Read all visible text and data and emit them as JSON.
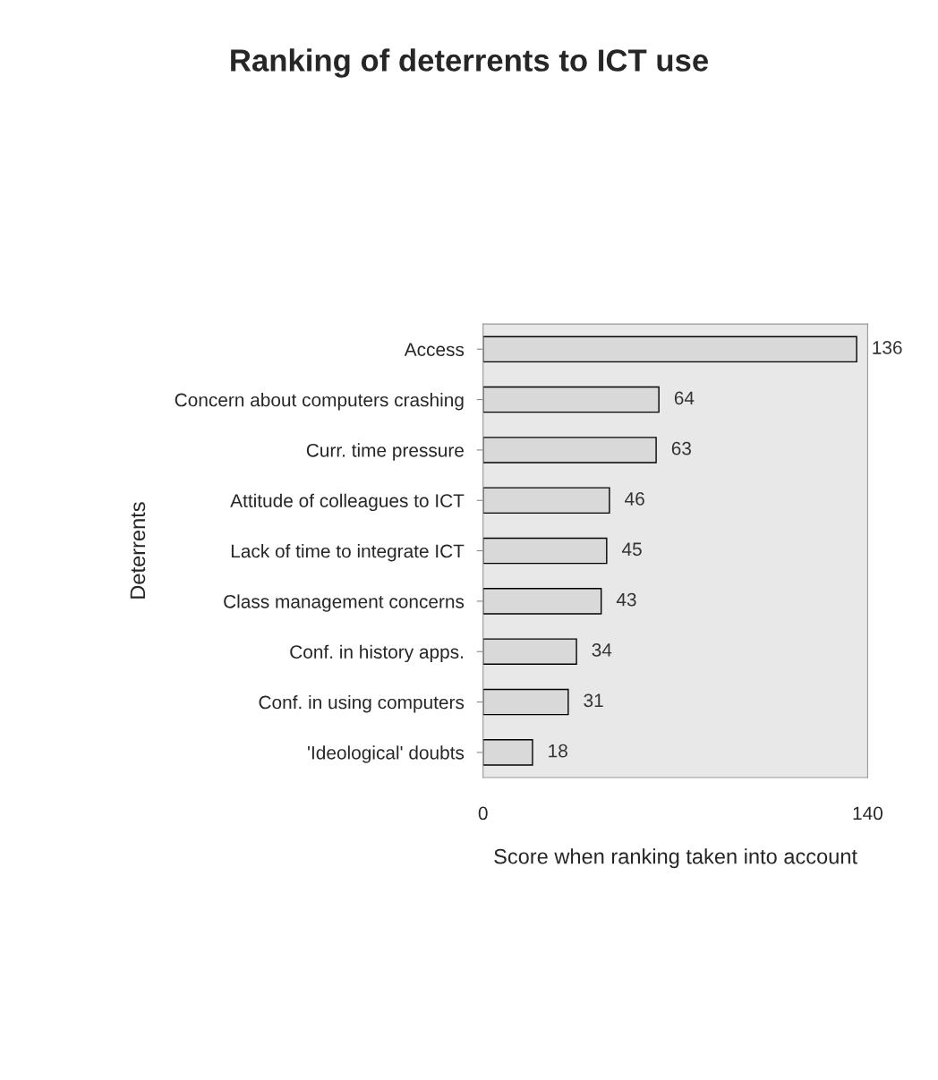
{
  "chart_data": {
    "type": "bar",
    "orientation": "horizontal",
    "title": "Ranking of deterrents to ICT use",
    "xlabel": "Score when ranking taken into account",
    "ylabel": "Deterrents",
    "categories": [
      "Access",
      "Concern about computers crashing",
      "Curr. time pressure",
      "Attitude of colleagues to ICT",
      "Lack of time to integrate ICT",
      "Class management concerns",
      "Conf. in history apps.",
      "Conf. in using computers",
      "'Ideological' doubts"
    ],
    "values": [
      136,
      64,
      63,
      46,
      45,
      43,
      34,
      31,
      18
    ],
    "color": "#d9d9d9",
    "xlim": [
      0,
      140
    ],
    "xticks": [
      0,
      140
    ],
    "data_labels": true,
    "grid": false
  }
}
